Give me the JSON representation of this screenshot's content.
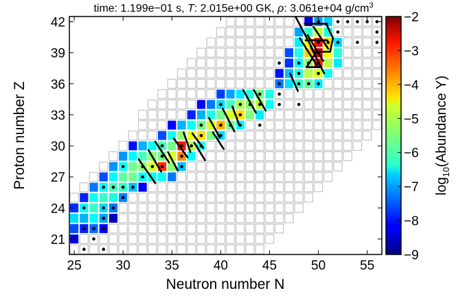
{
  "chart_data": {
    "type": "heatmap",
    "title_prefix": "time: 1.199e−01 s, ",
    "title_T_symbol": "T",
    "title_T_value": ": 2.015e+00 GK, ",
    "title_rho_symbol": "ρ",
    "title_rho_value": ": 3.061e+04 g/cm",
    "title_rho_exp": "3",
    "xlabel": "Neutron number N",
    "ylabel": "Proton number Z",
    "colorbar_label_prefix": "log",
    "colorbar_label_sub": "10",
    "colorbar_label_suffix": "(Abundance Y)",
    "xlim": [
      24.5,
      56.5
    ],
    "ylim": [
      19.5,
      42.5
    ],
    "xticks": [
      25,
      30,
      35,
      40,
      45,
      50,
      55
    ],
    "yticks": [
      21,
      24,
      27,
      30,
      33,
      36,
      39,
      42
    ],
    "xtick_labels": [
      "25",
      "30",
      "35",
      "40",
      "45",
      "50",
      "55"
    ],
    "ytick_labels": [
      "21",
      "24",
      "27",
      "30",
      "33",
      "36",
      "39",
      "42"
    ],
    "colorbar_range": [
      -9,
      -2
    ],
    "colorbar_ticks": [
      -2,
      -3,
      -4,
      -5,
      -6,
      -7,
      -8,
      -9
    ],
    "colorbar_tick_labels": [
      "−2",
      "−3",
      "−4",
      "−5",
      "−6",
      "−7",
      "−8",
      "−9"
    ],
    "colormap": "jet",
    "grid_border_color": "#c8c8c8",
    "flow_line_color": "#000000",
    "stable_marker_color": "#000000",
    "chart_rows": [
      {
        "z": 20,
        "n_min": 25,
        "n_max": 44,
        "abund": {},
        "stable": [
          26,
          28
        ]
      },
      {
        "z": 21,
        "n_min": 25,
        "n_max": 45,
        "abund": {
          "25": -8.4
        },
        "stable": [
          27
        ]
      },
      {
        "z": 22,
        "n_min": 25,
        "n_max": 46,
        "abund": {
          "25": -7.6,
          "26": -7.9,
          "27": -7.4,
          "28": -8.1
        },
        "stable": [
          26,
          27,
          28
        ]
      },
      {
        "z": 23,
        "n_min": 25,
        "n_max": 47,
        "abund": {
          "25": -6.6,
          "26": -6.9,
          "27": -6.4,
          "28": -7.0,
          "29": -8.6
        },
        "stable": [
          28
        ]
      },
      {
        "z": 24,
        "n_min": 25,
        "n_max": 48,
        "abund": {
          "25": -7.8,
          "26": -6.4,
          "27": -6.0,
          "28": -6.6,
          "29": -7.3
        },
        "stable": [
          26,
          28,
          29
        ]
      },
      {
        "z": 25,
        "n_min": 25,
        "n_max": 49,
        "abund": {
          "26": -7.9,
          "27": -6.3,
          "28": -6.0,
          "29": -6.2,
          "30": -7.2
        },
        "stable": [
          30
        ]
      },
      {
        "z": 26,
        "n_min": 26,
        "n_max": 50,
        "abund": {
          "27": -7.3,
          "28": -6.4,
          "29": -5.9,
          "30": -6.0,
          "31": -6.8,
          "32": -8.2
        },
        "stable": [
          28,
          29,
          30,
          31
        ]
      },
      {
        "z": 27,
        "n_min": 27,
        "n_max": 51,
        "abund": {
          "28": -7.6,
          "29": -6.4,
          "30": -5.7,
          "31": -5.6,
          "32": -6.4,
          "33": -6.3,
          "34": -6.3,
          "35": -7.3
        },
        "stable": [
          32
        ]
      },
      {
        "z": 28,
        "n_min": 28,
        "n_max": 52,
        "abund": {
          "29": -7.1,
          "30": -6.3,
          "31": -5.6,
          "32": -5.4,
          "33": -4.9,
          "34": -3.2,
          "35": -5.4,
          "36": -6.8
        },
        "stable": [
          30,
          32,
          33,
          34,
          36
        ]
      },
      {
        "z": 29,
        "n_min": 29,
        "n_max": 53,
        "abund": {
          "30": -7.1,
          "31": -6.4,
          "32": -5.9,
          "33": -5.4,
          "34": -5.6,
          "35": -4.9,
          "36": -3.8,
          "37": -6.4
        },
        "stable": [
          34,
          36
        ]
      },
      {
        "z": 30,
        "n_min": 30,
        "n_max": 54,
        "abund": {
          "31": -8.0,
          "32": -6.9,
          "33": -6.3,
          "34": -5.9,
          "35": -5.6,
          "36": -3.0,
          "37": -5.1,
          "38": -6.2
        },
        "stable": [
          34,
          36,
          37,
          38
        ]
      },
      {
        "z": 31,
        "n_min": 31,
        "n_max": 55,
        "abund": {
          "34": -7.6,
          "35": -6.3,
          "36": -5.4,
          "37": -4.8,
          "38": -4.4,
          "39": -5.5,
          "40": -6.6
        },
        "stable": [
          38,
          40
        ]
      },
      {
        "z": 32,
        "n_min": 32,
        "n_max": 56,
        "abund": {
          "35": -8.1,
          "36": -6.9,
          "37": -6.3,
          "38": -5.6,
          "39": -4.9,
          "40": -4.1,
          "41": -5.6,
          "42": -6.4
        },
        "stable": [
          38,
          40,
          41,
          42,
          44
        ]
      },
      {
        "z": 33,
        "n_min": 32,
        "n_max": 56,
        "abund": {
          "37": -7.9,
          "38": -6.9,
          "39": -6.2,
          "40": -5.6,
          "41": -4.9,
          "42": -4.4,
          "43": -5.5,
          "44": -6.5
        },
        "stable": [
          42
        ]
      },
      {
        "z": 34,
        "n_min": 33,
        "n_max": 56,
        "abund": {
          "38": -8.2,
          "39": -7.3,
          "40": -6.6,
          "41": -5.9,
          "42": -5.2,
          "43": -5.4,
          "44": -5.1,
          "45": -6.3
        },
        "stable": [
          40,
          42,
          43,
          44,
          46,
          48
        ]
      },
      {
        "z": 35,
        "n_min": 34,
        "n_max": 56,
        "abund": {
          "40": -7.7,
          "41": -7.0,
          "42": -6.5,
          "43": -6.1,
          "44": -5.6,
          "45": -6.2
        },
        "stable": [
          44,
          46
        ]
      },
      {
        "z": 36,
        "n_min": 35,
        "n_max": 56,
        "abund": {
          "46": -7.3,
          "47": -6.6,
          "48": -6.0,
          "49": -5.7,
          "50": -6.5
        },
        "stable": [
          46,
          48,
          49,
          50
        ]
      },
      {
        "z": 37,
        "n_min": 36,
        "n_max": 56,
        "abund": {
          "46": -8.0,
          "47": -6.8,
          "48": -6.1,
          "49": -5.1,
          "50": -4.9,
          "51": -6.3
        },
        "stable": [
          48,
          50
        ]
      },
      {
        "z": 38,
        "n_min": 37,
        "n_max": 56,
        "abund": {
          "47": -7.8,
          "48": -6.4,
          "49": -5.4,
          "50": -3.1,
          "51": -5.1,
          "52": -6.5
        },
        "stable": [
          46,
          48,
          49,
          50
        ]
      },
      {
        "z": 39,
        "n_min": 38,
        "n_max": 56,
        "abund": {
          "47": -7.6,
          "48": -6.2,
          "49": -4.3,
          "50": -2.6,
          "51": -4.7,
          "52": -6.1
        },
        "stable": [
          50
        ]
      },
      {
        "z": 40,
        "n_min": 39,
        "n_max": 56,
        "abund": {
          "48": -6.5,
          "49": -4.6,
          "50": -2.9,
          "51": -4.4,
          "52": -6.6
        },
        "stable": [
          50,
          51,
          52,
          54,
          56
        ]
      },
      {
        "z": 41,
        "n_min": 40,
        "n_max": 56,
        "abund": {
          "48": -7.0,
          "49": -6.0,
          "50": -5.0,
          "51": -6.2
        },
        "stable": [
          52,
          56
        ]
      },
      {
        "z": 42,
        "n_min": 41,
        "n_max": 56,
        "abund": {
          "49": -8.3,
          "50": -7.0,
          "51": -6.7
        },
        "stable": [
          50,
          52,
          53,
          54,
          55,
          56
        ]
      }
    ],
    "flow_lines": [
      [
        31.6,
        28.7,
        33.3,
        26.4
      ],
      [
        32.6,
        29.6,
        33.9,
        27.5
      ],
      [
        33.3,
        30.4,
        34.7,
        28.4
      ],
      [
        34.6,
        29.4,
        35.6,
        27.6
      ],
      [
        35.2,
        30.7,
        36.6,
        28.9
      ],
      [
        36.2,
        31.3,
        36.9,
        29.4
      ],
      [
        37.1,
        31.2,
        38.2,
        29.8
      ],
      [
        37.3,
        30.3,
        38.4,
        28.6
      ],
      [
        39.2,
        31.3,
        40.3,
        29.7
      ],
      [
        38.8,
        32.7,
        39.9,
        30.8
      ],
      [
        41.2,
        33.8,
        41.9,
        32.0
      ],
      [
        40.2,
        33.6,
        41.4,
        31.4
      ],
      [
        42.3,
        35.4,
        43.6,
        33.2
      ],
      [
        43.4,
        35.4,
        44.6,
        33.4
      ],
      [
        47.1,
        37.0,
        47.9,
        35.3
      ],
      [
        47.6,
        42.6,
        49.6,
        39.0
      ],
      [
        48.1,
        40.4,
        49.9,
        37.7
      ],
      [
        48.9,
        40.7,
        50.5,
        38.2
      ],
      [
        49.5,
        41.5,
        51.0,
        39.4
      ],
      [
        49.2,
        39.6,
        50.6,
        37.0
      ],
      [
        48.6,
        41.8,
        50.9,
        41.8
      ],
      [
        50.8,
        41.8,
        51.5,
        40.4
      ],
      [
        51.5,
        40.4,
        51.2,
        39.1
      ],
      [
        51.2,
        39.1,
        49.8,
        39.1
      ],
      [
        49.8,
        39.1,
        48.8,
        37.6
      ],
      [
        48.8,
        37.6,
        50.3,
        37.6
      ],
      [
        48.7,
        40.2,
        50.9,
        40.2
      ]
    ]
  }
}
